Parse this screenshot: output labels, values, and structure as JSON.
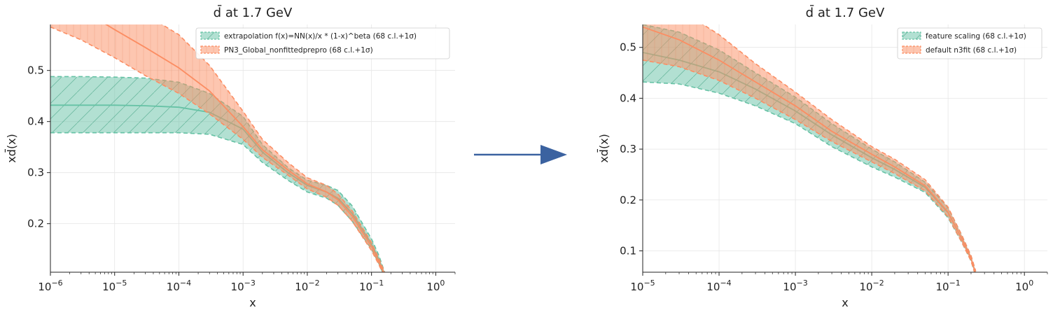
{
  "arrow_color": "#3b62a0",
  "chart_data": [
    {
      "type": "line",
      "title": "d̄ at 1.7 GeV",
      "xlabel": "x",
      "ylabel": "xd̄(x)",
      "xscale": "log",
      "xlim": [
        1e-06,
        2.0
      ],
      "ylim": [
        0.105,
        0.59
      ],
      "xtick_values": [
        1e-06,
        1e-05,
        0.0001,
        0.001,
        0.01,
        0.1,
        1
      ],
      "xtick_labels": [
        [
          "10",
          "−6"
        ],
        [
          "10",
          "−5"
        ],
        [
          "10",
          "−4"
        ],
        [
          "10",
          "−3"
        ],
        [
          "10",
          "−2"
        ],
        [
          "10",
          "−1"
        ],
        [
          "10",
          "0"
        ]
      ],
      "ytick_values": [
        0.2,
        0.3,
        0.4,
        0.5
      ],
      "ytick_labels": [
        "0.2",
        "0.3",
        "0.4",
        "0.5"
      ],
      "grid": true,
      "legend_position": "top-right",
      "x": [
        1e-06,
        3e-06,
        1e-05,
        3e-05,
        0.0001,
        0.0003,
        0.001,
        0.002,
        0.005,
        0.01,
        0.02,
        0.03,
        0.05,
        0.1,
        0.13,
        0.16
      ],
      "series": [
        {
          "name": "extrapolation f(x)=NN(x)/x * (1-x)^beta  (68 c.l.+1σ)",
          "color": "#66c2a5",
          "central": [
            0.432,
            0.432,
            0.432,
            0.431,
            0.428,
            0.418,
            0.385,
            0.34,
            0.3,
            0.275,
            0.262,
            0.25,
            0.22,
            0.16,
            0.13,
            0.1
          ],
          "lower": [
            0.378,
            0.378,
            0.378,
            0.378,
            0.378,
            0.375,
            0.355,
            0.32,
            0.285,
            0.262,
            0.25,
            0.236,
            0.205,
            0.15,
            0.122,
            0.095
          ],
          "upper": [
            0.488,
            0.488,
            0.487,
            0.485,
            0.477,
            0.455,
            0.41,
            0.355,
            0.31,
            0.285,
            0.275,
            0.265,
            0.235,
            0.17,
            0.138,
            0.105
          ],
          "hatch": "/"
        },
        {
          "name": "PN3_Global_nonfittedprepro (68 c.l.+1σ)",
          "color": "#fc8d62",
          "central": [
            0.65,
            0.62,
            0.58,
            0.545,
            0.505,
            0.46,
            0.39,
            0.345,
            0.305,
            0.278,
            0.262,
            0.247,
            0.215,
            0.155,
            0.125,
            0.1
          ],
          "lower": [
            0.585,
            0.56,
            0.525,
            0.49,
            0.455,
            0.415,
            0.365,
            0.33,
            0.295,
            0.268,
            0.252,
            0.236,
            0.205,
            0.147,
            0.12,
            0.095
          ],
          "upper": [
            0.72,
            0.69,
            0.65,
            0.61,
            0.57,
            0.51,
            0.42,
            0.365,
            0.32,
            0.29,
            0.275,
            0.258,
            0.225,
            0.163,
            0.132,
            0.105
          ],
          "hatch": "|"
        }
      ]
    },
    {
      "type": "line",
      "title": "d̄ at 1.7 GeV",
      "xlabel": "x",
      "ylabel": "xd̄(x)",
      "xscale": "log",
      "xlim": [
        1e-05,
        2.0
      ],
      "ylim": [
        0.058,
        0.545
      ],
      "xtick_values": [
        1e-05,
        0.0001,
        0.001,
        0.01,
        0.1,
        1
      ],
      "xtick_labels": [
        [
          "10",
          "−5"
        ],
        [
          "10",
          "−4"
        ],
        [
          "10",
          "−3"
        ],
        [
          "10",
          "−2"
        ],
        [
          "10",
          "−1"
        ],
        [
          "10",
          "0"
        ]
      ],
      "ytick_values": [
        0.1,
        0.2,
        0.3,
        0.4,
        0.5
      ],
      "ytick_labels": [
        "0.1",
        "0.2",
        "0.3",
        "0.4",
        "0.5"
      ],
      "grid": true,
      "legend_position": "top-right",
      "x": [
        1e-05,
        3e-05,
        0.0001,
        0.0003,
        0.001,
        0.003,
        0.01,
        0.02,
        0.05,
        0.1,
        0.15,
        0.2,
        0.23
      ],
      "series": [
        {
          "name": "feature scaling (68 c.l.+1σ)",
          "color": "#66c2a5",
          "central": [
            0.49,
            0.475,
            0.452,
            0.418,
            0.375,
            0.328,
            0.283,
            0.26,
            0.225,
            0.175,
            0.125,
            0.085,
            0.055
          ],
          "lower": [
            0.432,
            0.428,
            0.41,
            0.385,
            0.35,
            0.305,
            0.265,
            0.245,
            0.215,
            0.165,
            0.118,
            0.08,
            0.05
          ],
          "upper": [
            0.545,
            0.53,
            0.495,
            0.45,
            0.402,
            0.35,
            0.3,
            0.275,
            0.235,
            0.185,
            0.132,
            0.09,
            0.06
          ],
          "hatch": "/"
        },
        {
          "name": "default n3fit (68 c.l.+1σ)",
          "color": "#fc8d62",
          "central": [
            0.54,
            0.515,
            0.475,
            0.432,
            0.385,
            0.335,
            0.29,
            0.265,
            0.228,
            0.176,
            0.125,
            0.085,
            0.055
          ],
          "lower": [
            0.475,
            0.462,
            0.435,
            0.4,
            0.358,
            0.315,
            0.275,
            0.252,
            0.218,
            0.167,
            0.118,
            0.08,
            0.05
          ],
          "upper": [
            0.6,
            0.575,
            0.525,
            0.468,
            0.412,
            0.358,
            0.305,
            0.28,
            0.24,
            0.186,
            0.132,
            0.09,
            0.06
          ],
          "hatch": "|"
        }
      ]
    }
  ]
}
